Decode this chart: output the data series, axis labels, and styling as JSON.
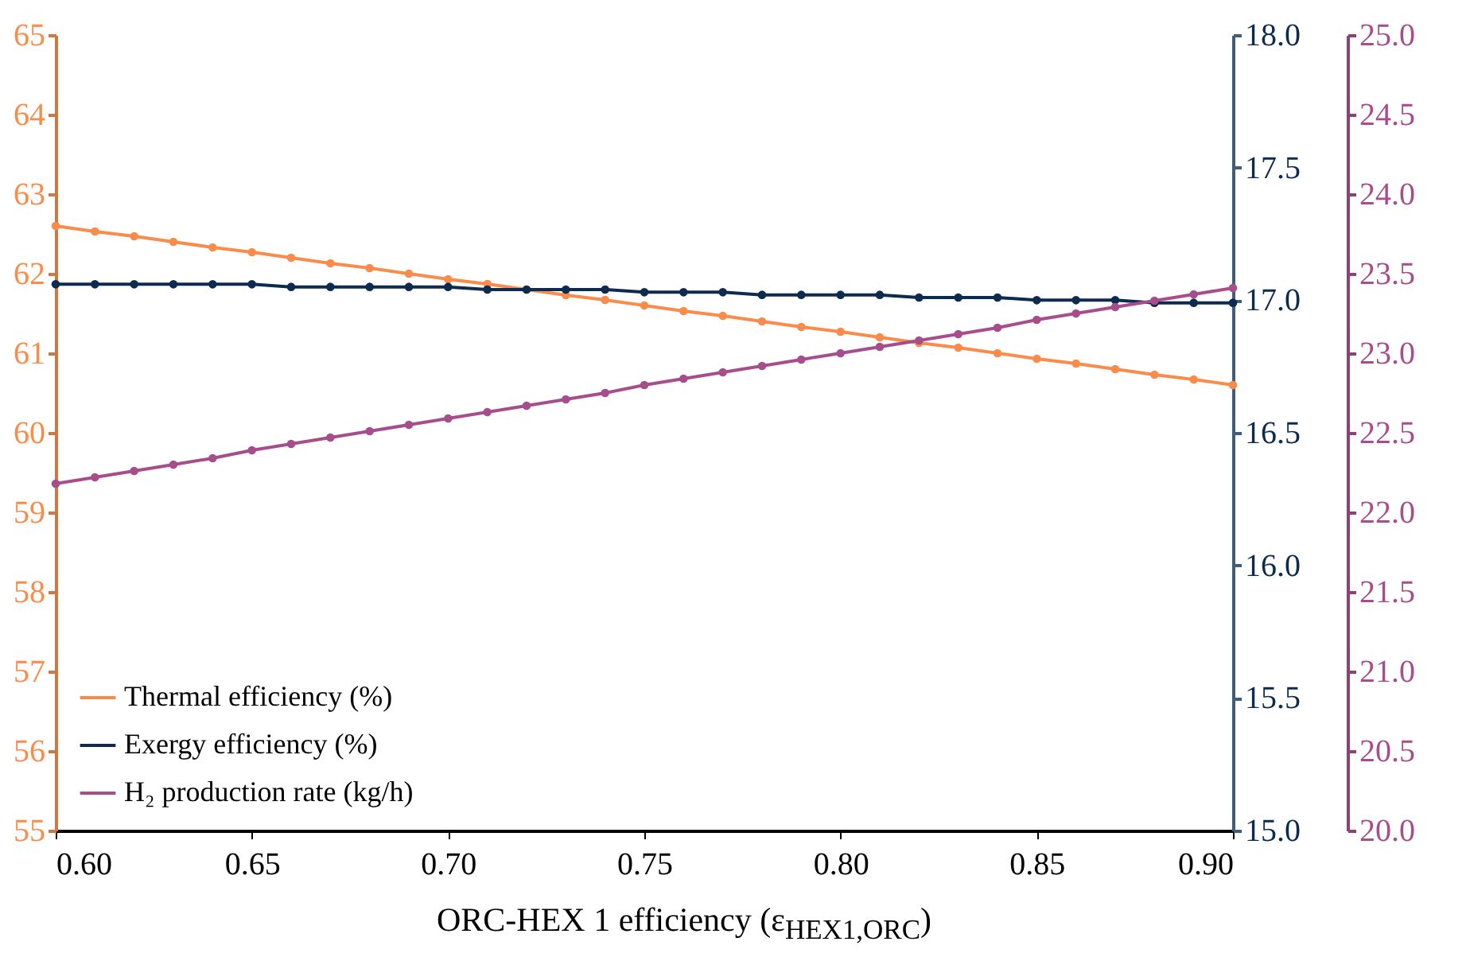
{
  "chart_data": {
    "type": "line",
    "xlabel": "ORC-HEX 1 efficiency (ε$_{HEX1,ORC}$)",
    "x": [
      0.6,
      0.61,
      0.62,
      0.63,
      0.64,
      0.65,
      0.66,
      0.67,
      0.68,
      0.69,
      0.7,
      0.71,
      0.72,
      0.73,
      0.74,
      0.75,
      0.76,
      0.77,
      0.78,
      0.79,
      0.8,
      0.81,
      0.82,
      0.83,
      0.84,
      0.85,
      0.86,
      0.87,
      0.88,
      0.89,
      0.9
    ],
    "series": [
      {
        "name": "Thermal efficiency (%)",
        "color": "#f98b4b",
        "axis": "y",
        "values": [
          62.6,
          62.53,
          62.47,
          62.4,
          62.33,
          62.27,
          62.2,
          62.13,
          62.07,
          62.0,
          61.93,
          61.87,
          61.8,
          61.73,
          61.67,
          61.6,
          61.53,
          61.47,
          61.4,
          61.33,
          61.27,
          61.2,
          61.13,
          61.07,
          61.0,
          60.93,
          60.87,
          60.8,
          60.73,
          60.67,
          60.6
        ]
      },
      {
        "name": "Exergy efficiency (%)",
        "color": "#0d2a4f",
        "axis": "y2",
        "values": [
          17.06,
          17.06,
          17.06,
          17.06,
          17.06,
          17.06,
          17.05,
          17.05,
          17.05,
          17.05,
          17.05,
          17.04,
          17.04,
          17.04,
          17.04,
          17.03,
          17.03,
          17.03,
          17.02,
          17.02,
          17.02,
          17.02,
          17.01,
          17.01,
          17.01,
          17.0,
          17.0,
          17.0,
          16.99,
          16.99,
          16.99
        ]
      },
      {
        "name": "H₂ production rate (kg/h)",
        "color": "#a84d8c",
        "axis": "y3",
        "values": [
          22.18,
          22.22,
          22.26,
          22.3,
          22.34,
          22.39,
          22.43,
          22.47,
          22.51,
          22.55,
          22.59,
          22.63,
          22.67,
          22.71,
          22.75,
          22.8,
          22.84,
          22.88,
          22.92,
          22.96,
          23.0,
          23.04,
          23.08,
          23.12,
          23.16,
          23.21,
          23.25,
          23.29,
          23.33,
          23.37,
          23.41
        ]
      }
    ],
    "xlim": [
      0.6,
      0.9
    ],
    "xticks": [
      {
        "value": 0.6,
        "label": "0.60"
      },
      {
        "value": 0.65,
        "label": "0.65"
      },
      {
        "value": 0.7,
        "label": "0.70"
      },
      {
        "value": 0.75,
        "label": "0.75"
      },
      {
        "value": 0.8,
        "label": "0.80"
      },
      {
        "value": 0.85,
        "label": "0.85"
      },
      {
        "value": 0.9,
        "label": "0.90"
      }
    ],
    "ylim": [
      55,
      65
    ],
    "yticks": [
      55,
      56,
      57,
      58,
      59,
      60,
      61,
      62,
      63,
      64,
      65
    ],
    "y2lim": [
      15,
      18
    ],
    "y2ticks": [
      {
        "value": 15,
        "label": "15.0"
      },
      {
        "value": 15.5,
        "label": "15.5"
      },
      {
        "value": 16,
        "label": "16.0"
      },
      {
        "value": 16.5,
        "label": "16.5"
      },
      {
        "value": 17,
        "label": "17.0"
      },
      {
        "value": 17.5,
        "label": "17.5"
      },
      {
        "value": 18,
        "label": "18.0"
      }
    ],
    "y3lim": [
      20,
      25
    ],
    "y3ticks": [
      {
        "value": 20,
        "label": "20.0"
      },
      {
        "value": 20.5,
        "label": "20.5"
      },
      {
        "value": 21,
        "label": "21.0"
      },
      {
        "value": 21.5,
        "label": "21.5"
      },
      {
        "value": 22,
        "label": "22.0"
      },
      {
        "value": 22.5,
        "label": "22.5"
      },
      {
        "value": 23,
        "label": "23.0"
      },
      {
        "value": 23.5,
        "label": "23.5"
      },
      {
        "value": 24,
        "label": "24.0"
      },
      {
        "value": 24.5,
        "label": "24.5"
      },
      {
        "value": 25,
        "label": "25.0"
      }
    ],
    "legend": "bottom left",
    "marker": "circle",
    "line_style": "solid",
    "grid": false
  }
}
